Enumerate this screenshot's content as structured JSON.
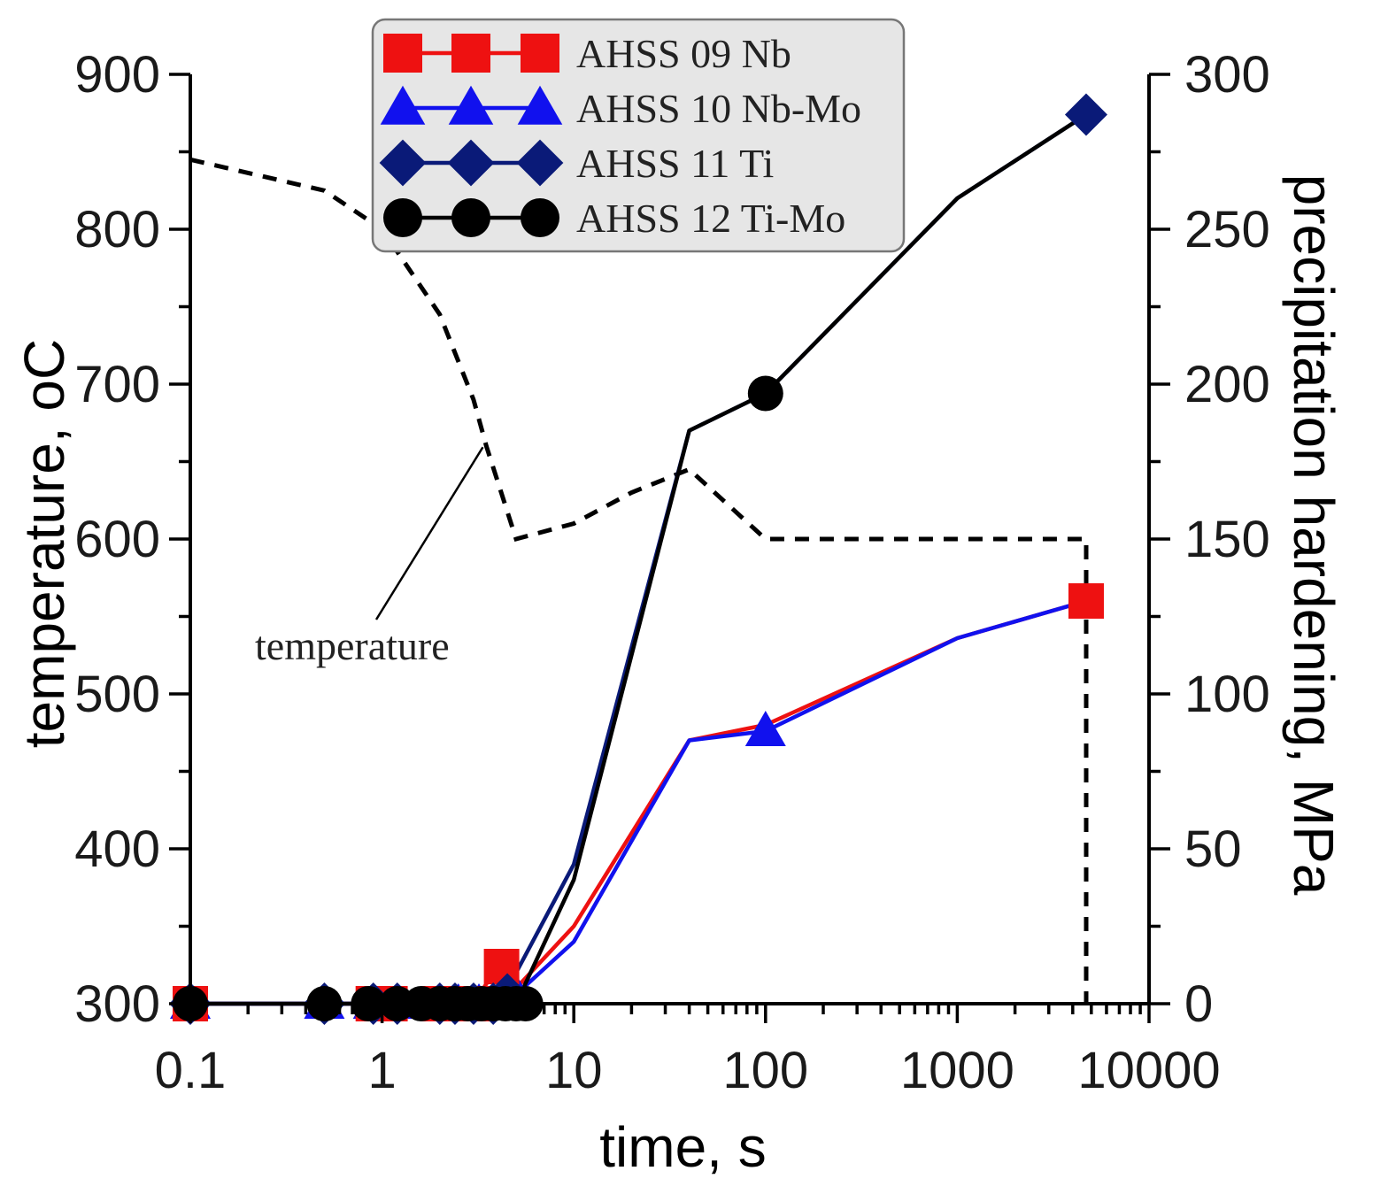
{
  "chart_data": {
    "type": "line",
    "title": "",
    "xlabel": "time, s",
    "ylabel_left": "temperature, oC",
    "ylabel_right": "precipitation hardening, MPa",
    "xscale": "log",
    "xlim": [
      0.1,
      10000
    ],
    "ylim_left": [
      300,
      900
    ],
    "ylim_right": [
      0,
      300
    ],
    "x_ticks": [
      0.1,
      1,
      10,
      100,
      1000,
      10000
    ],
    "x_tick_labels": [
      "0.1",
      "1",
      "10",
      "100",
      "1000",
      "10000"
    ],
    "y_left_ticks": [
      300,
      400,
      500,
      600,
      700,
      800,
      900
    ],
    "y_left_tick_labels": [
      "300",
      "400",
      "500",
      "600",
      "700",
      "800",
      "900"
    ],
    "y_right_ticks": [
      0,
      50,
      100,
      150,
      200,
      250,
      300
    ],
    "y_right_tick_labels": [
      "0",
      "50",
      "100",
      "150",
      "200",
      "250",
      "300"
    ],
    "legend_position": "top-center",
    "temperature": {
      "name": "temperature",
      "axis": "left",
      "style": "dashed",
      "color": "#000000",
      "x": [
        0.1,
        0.5,
        1,
        2,
        3,
        3.5,
        5,
        10,
        20,
        40,
        100,
        1000,
        4700,
        4700
      ],
      "y": [
        845,
        825,
        800,
        745,
        690,
        660,
        600,
        610,
        630,
        645,
        600,
        600,
        600,
        300
      ]
    },
    "annotation": {
      "text": "temperature",
      "points_to_x": 3.5,
      "points_to_y": 665
    },
    "series": [
      {
        "name": "AHSS 09 Nb",
        "axis": "right",
        "color": "#ee1111",
        "marker": "square",
        "x": [
          0.1,
          0.5,
          1,
          2,
          3,
          4,
          5,
          10,
          40,
          100,
          1000,
          4700
        ],
        "y": [
          0,
          0,
          0,
          0,
          0,
          12,
          5,
          25,
          85,
          90,
          118,
          130
        ],
        "marker_x": [
          0.1,
          0.9,
          1.1,
          2.0,
          2.5,
          3.0,
          4.2,
          4700
        ],
        "marker_y": [
          0,
          0,
          0,
          0,
          0,
          0,
          12,
          130
        ]
      },
      {
        "name": "AHSS 10 Nb-Mo",
        "axis": "right",
        "color": "#1111ee",
        "marker": "triangle",
        "x": [
          0.1,
          0.5,
          1,
          2,
          3,
          4,
          5,
          10,
          40,
          100,
          1000,
          4700
        ],
        "y": [
          0,
          0,
          0,
          0,
          0,
          0,
          3,
          20,
          85,
          88,
          118,
          130
        ],
        "marker_x": [
          0.1,
          0.5,
          0.9,
          1.2,
          2.0,
          2.5,
          3.2,
          4.2,
          5.0,
          100
        ],
        "marker_y": [
          0,
          0,
          0,
          0,
          0,
          0,
          0,
          0,
          3,
          88
        ]
      },
      {
        "name": "AHSS 11 Ti",
        "axis": "right",
        "color": "#0a1a78",
        "marker": "diamond",
        "x": [
          0.1,
          0.5,
          1,
          2,
          3,
          4,
          5,
          10,
          40,
          100,
          1000,
          4700
        ],
        "y": [
          0,
          0,
          0,
          0,
          0,
          2,
          10,
          45,
          185,
          197,
          260,
          287
        ],
        "marker_x": [
          0.1,
          0.5,
          0.9,
          1.2,
          2.0,
          2.4,
          3.0,
          3.8,
          4.5,
          4700
        ],
        "marker_y": [
          0,
          0,
          0,
          0,
          0,
          0,
          0,
          0,
          3,
          287
        ]
      },
      {
        "name": "AHSS 12 Ti-Mo",
        "axis": "right",
        "color": "#000000",
        "marker": "circle",
        "x": [
          0.1,
          0.5,
          1,
          2,
          3,
          4,
          5,
          10,
          40,
          100,
          1000,
          4700
        ],
        "y": [
          0,
          0,
          0,
          0,
          0,
          0,
          0,
          40,
          185,
          197,
          260,
          287
        ],
        "marker_x": [
          0.1,
          0.5,
          0.85,
          1.2,
          1.6,
          2.0,
          2.4,
          2.8,
          3.3,
          3.8,
          4.4,
          5.0,
          5.6,
          100
        ],
        "marker_y": [
          0,
          0,
          0,
          0,
          0,
          0,
          0,
          0,
          0,
          0,
          0,
          0,
          0,
          197
        ]
      }
    ]
  }
}
